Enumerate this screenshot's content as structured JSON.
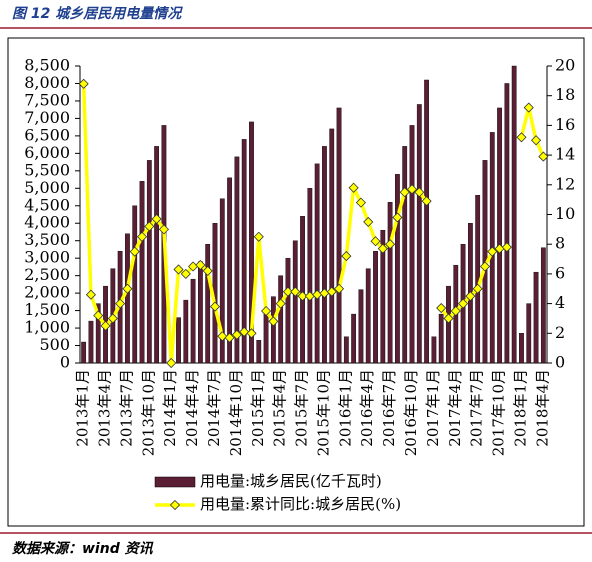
{
  "figure_title": "图 12 城乡居民用电量情况",
  "source": "数据来源：wind 资讯",
  "chart_data": {
    "type": "bar-line",
    "categories": [
      "2013年1月",
      null,
      null,
      "2013年4月",
      null,
      null,
      "2013年7月",
      null,
      null,
      "2013年10月",
      null,
      null,
      "2014年1月",
      null,
      null,
      "2014年4月",
      null,
      null,
      "2014年7月",
      null,
      null,
      "2014年10月",
      null,
      null,
      "2015年1月",
      null,
      null,
      "2015年4月",
      null,
      null,
      "2015年7月",
      null,
      null,
      "2015年10月",
      null,
      null,
      "2016年1月",
      null,
      null,
      "2016年4月",
      null,
      null,
      "2016年7月",
      null,
      null,
      "2016年10月",
      null,
      null,
      "2017年1月",
      null,
      null,
      "2017年4月",
      null,
      null,
      "2017年7月",
      null,
      null,
      "2017年10月",
      null,
      null,
      "2018年1月",
      null,
      null,
      "2018年4月"
    ],
    "series": [
      {
        "name": "用电量:城乡居民(亿千瓦时)",
        "color": "#5a1f35",
        "axis": "y",
        "values": [
          600,
          1200,
          1700,
          2200,
          2700,
          3200,
          3700,
          4500,
          5200,
          5800,
          6200,
          6800,
          null,
          1300,
          1800,
          2400,
          2900,
          3400,
          4000,
          4700,
          5300,
          5900,
          6400,
          6900,
          650,
          1400,
          1900,
          2500,
          3000,
          3500,
          4200,
          5000,
          5700,
          6200,
          6700,
          7300,
          750,
          1400,
          2100,
          2700,
          3200,
          3800,
          4600,
          5400,
          6200,
          6800,
          7400,
          8100,
          750,
          1400,
          2200,
          2800,
          3400,
          4000,
          4800,
          5800,
          6600,
          7300,
          8000,
          8500,
          850,
          1700,
          2600,
          3300
        ]
      },
      {
        "name": "用电量:累计同比:城乡居民(%)",
        "color": "#ffff00",
        "axis": "y2",
        "values": [
          18.8,
          4.6,
          3.2,
          2.5,
          3.0,
          4.0,
          5.0,
          7.5,
          8.5,
          9.2,
          9.7,
          9.0,
          0,
          6.3,
          6.0,
          6.5,
          6.6,
          6.2,
          3.8,
          1.8,
          1.7,
          1.9,
          2.1,
          2.0,
          8.5,
          3.5,
          2.8,
          4.0,
          4.8,
          4.8,
          4.5,
          4.5,
          4.6,
          4.7,
          4.8,
          5.0,
          7.2,
          11.8,
          10.8,
          9.5,
          8.2,
          7.7,
          8.0,
          9.8,
          11.5,
          11.7,
          11.5,
          10.9,
          null,
          3.7,
          3.0,
          3.5,
          4.0,
          4.5,
          5.0,
          6.5,
          7.5,
          7.7,
          7.8,
          null,
          15.2,
          17.2,
          15.0,
          13.9
        ]
      }
    ],
    "ylim": [
      0,
      8500
    ],
    "yticks": [
      0,
      500,
      {
        "value": 1000,
        "label": "1,000"
      },
      {
        "value": 1500,
        "label": "1,500"
      },
      {
        "value": 2000,
        "label": "2,000"
      },
      {
        "value": 2500,
        "label": "2,500"
      },
      {
        "value": 3000,
        "label": "3,000"
      },
      {
        "value": 3500,
        "label": "3,500"
      },
      {
        "value": 4000,
        "label": "4,000"
      },
      {
        "value": 4500,
        "label": "4,500"
      },
      {
        "value": 5000,
        "label": "5,000"
      },
      {
        "value": 5500,
        "label": "5,500"
      },
      {
        "value": 6000,
        "label": "6,000"
      },
      {
        "value": 6500,
        "label": "6,500"
      },
      {
        "value": 7000,
        "label": "7,000"
      },
      {
        "value": 7500,
        "label": "7,500"
      },
      {
        "value": 8000,
        "label": "8,000"
      },
      {
        "value": 8500,
        "label": "8,500"
      }
    ],
    "y2lim": [
      0,
      20
    ],
    "y2ticks": [
      0,
      2,
      4,
      6,
      8,
      10,
      12,
      14,
      16,
      18,
      20
    ],
    "legend": "bottom"
  }
}
